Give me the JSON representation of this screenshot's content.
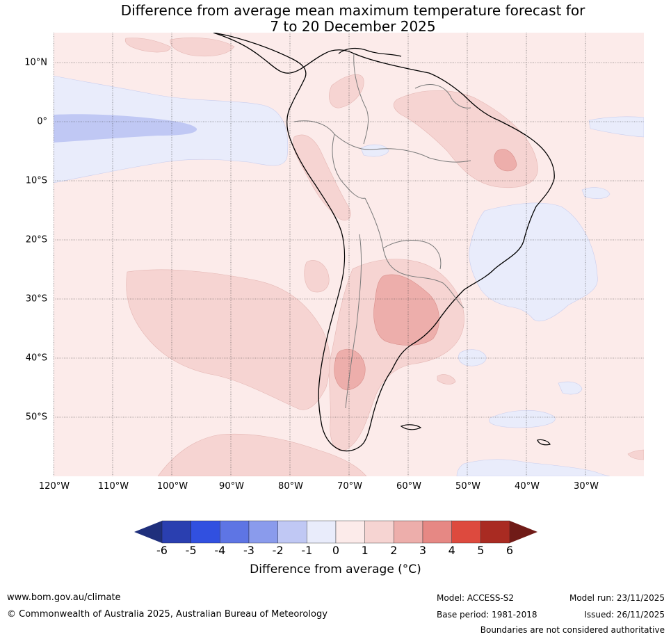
{
  "title_line1": "Difference from average mean maximum temperature forecast for",
  "title_line2": "7 to 20 December 2025",
  "lat_labels": [
    "10°N",
    "0°",
    "10°S",
    "20°S",
    "30°S",
    "40°S",
    "50°S"
  ],
  "lon_labels": [
    "120°W",
    "110°W",
    "100°W",
    "90°W",
    "80°W",
    "70°W",
    "60°W",
    "50°W",
    "40°W",
    "30°W"
  ],
  "colorbar": {
    "ticks": [
      "-6",
      "-5",
      "-4",
      "-3",
      "-2",
      "-1",
      "0",
      "1",
      "2",
      "3",
      "4",
      "5",
      "6"
    ],
    "colors": [
      "#2a3fb0",
      "#3150e0",
      "#5e75e4",
      "#8a9bec",
      "#c0c8f4",
      "#e9ecfb",
      "#fcebea",
      "#f6d4d2",
      "#edaeab",
      "#e68884",
      "#dd4a3e",
      "#a92b22"
    ],
    "low_color": "#1f2f7c",
    "high_color": "#701b17",
    "label": "Difference from average (°C)"
  },
  "footer": {
    "url": "www.bom.gov.au/climate",
    "copyright": "© Commonwealth of Australia 2025, Australian Bureau of Meteorology",
    "model": "Model: ACCESS-S2",
    "base_period": "Base period: 1981-2018",
    "model_run": "Model run: 23/11/2025",
    "issued": "Issued: 26/11/2025",
    "disclaimer": "Boundaries are not considered authoritative"
  }
}
